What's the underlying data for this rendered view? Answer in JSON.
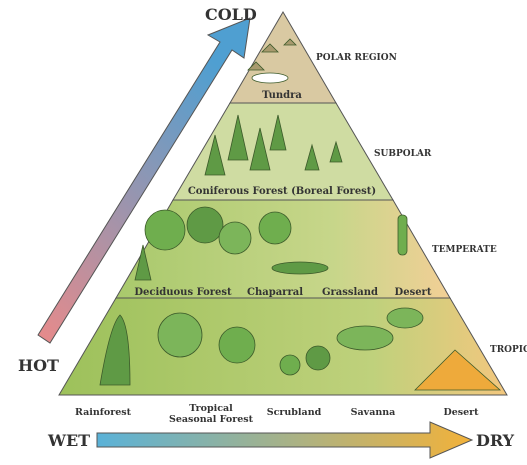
{
  "axes": {
    "top": "COLD",
    "left": "HOT",
    "bottom_left": "WET",
    "bottom_right": "DRY"
  },
  "zones": [
    "POLAR REGION",
    "SUBPOLAR",
    "TEMPERATE",
    "TROPIC"
  ],
  "tiers": [
    {
      "biomes": [
        "Tundra"
      ]
    },
    {
      "biomes": [
        "Coniferous Forest (Boreal Forest)"
      ]
    },
    {
      "biomes": [
        "Deciduous Forest",
        "Chaparral",
        "Grassland",
        "Desert"
      ]
    },
    {
      "biomes": [
        "Rainforest",
        "Tropical Seasonal Forest",
        "Scrubland",
        "Savanna",
        "Desert"
      ]
    }
  ]
}
